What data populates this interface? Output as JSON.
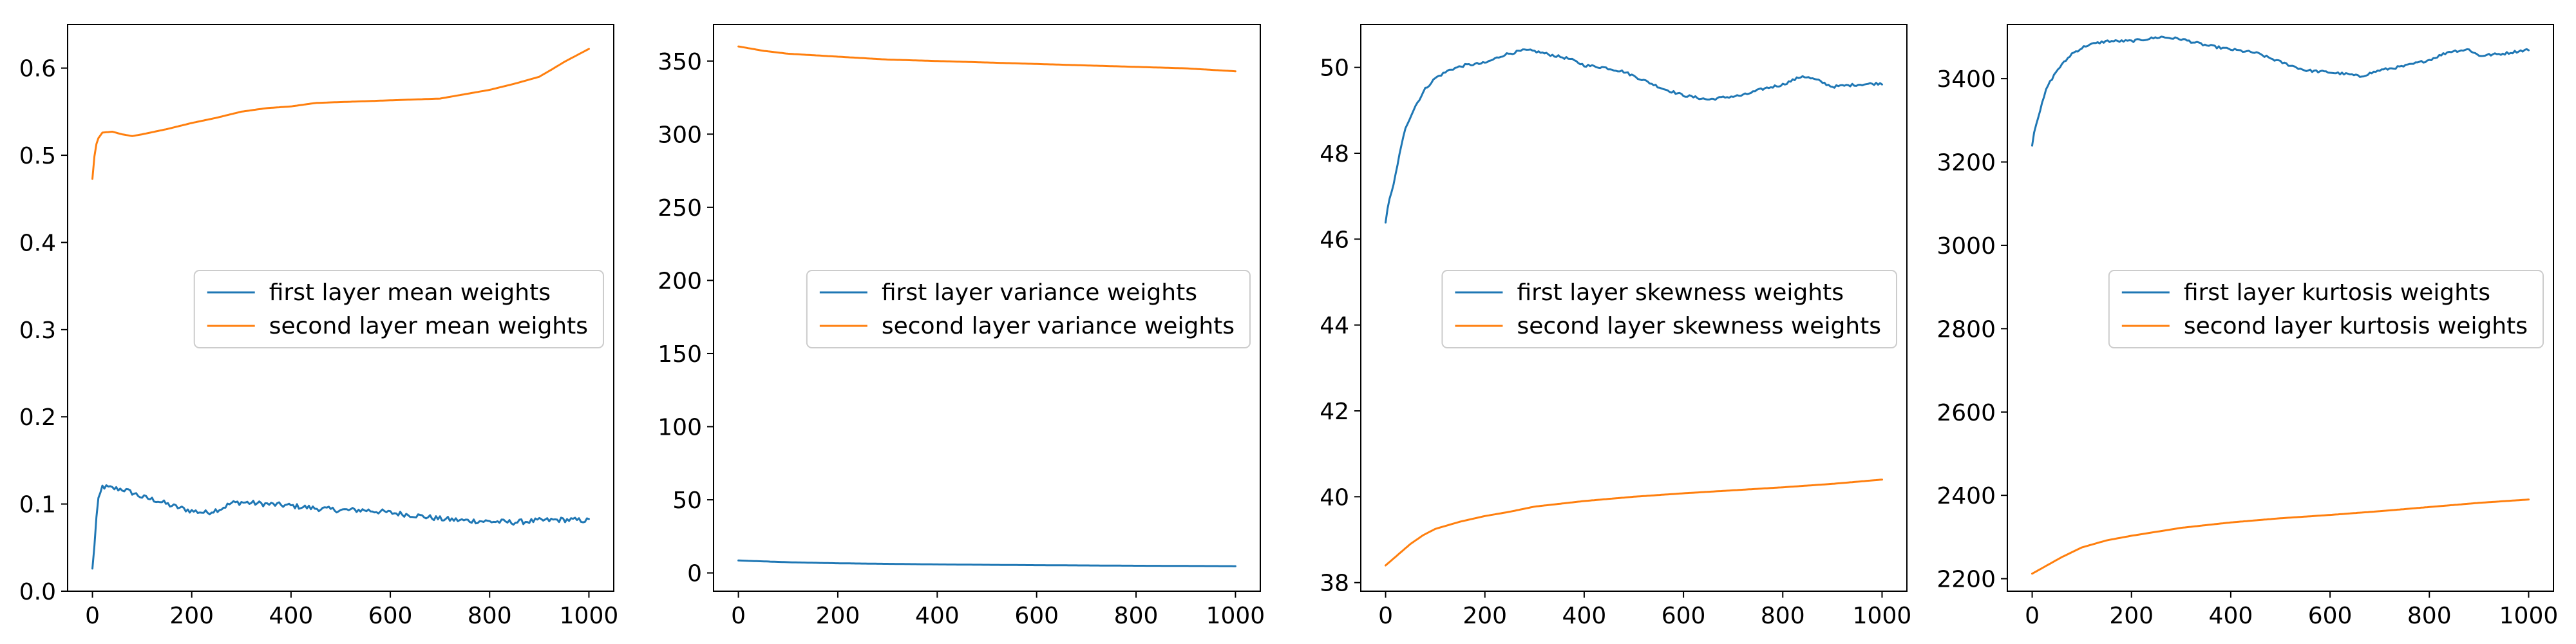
{
  "colors": {
    "first_layer": "#1f77b4",
    "second_layer": "#ff7f0e"
  },
  "chart_data": [
    {
      "type": "line",
      "xlim": [
        -50,
        1050
      ],
      "ylim": [
        0.0,
        0.65
      ],
      "xticks": [
        0,
        200,
        400,
        600,
        800,
        1000
      ],
      "yticks": [
        0.0,
        0.1,
        0.2,
        0.3,
        0.4,
        0.5,
        0.6
      ],
      "ytick_labels": [
        "0.0",
        "0.1",
        "0.2",
        "0.3",
        "0.4",
        "0.5",
        "0.6"
      ],
      "legend": {
        "placement": "center-right"
      },
      "series": [
        {
          "name": "first layer mean weights",
          "color": "#1f77b4",
          "noise": 0.003,
          "points": [
            [
              0,
              0.025
            ],
            [
              5,
              0.06
            ],
            [
              10,
              0.1
            ],
            [
              20,
              0.12
            ],
            [
              40,
              0.118
            ],
            [
              60,
              0.117
            ],
            [
              80,
              0.113
            ],
            [
              100,
              0.108
            ],
            [
              130,
              0.104
            ],
            [
              160,
              0.098
            ],
            [
              200,
              0.092
            ],
            [
              230,
              0.09
            ],
            [
              260,
              0.095
            ],
            [
              280,
              0.101
            ],
            [
              300,
              0.102
            ],
            [
              350,
              0.1
            ],
            [
              400,
              0.098
            ],
            [
              450,
              0.095
            ],
            [
              500,
              0.093
            ],
            [
              550,
              0.093
            ],
            [
              600,
              0.09
            ],
            [
              650,
              0.087
            ],
            [
              700,
              0.083
            ],
            [
              750,
              0.081
            ],
            [
              800,
              0.08
            ],
            [
              850,
              0.079
            ],
            [
              900,
              0.081
            ],
            [
              950,
              0.082
            ],
            [
              1000,
              0.081
            ]
          ]
        },
        {
          "name": "second layer mean weights",
          "color": "#ff7f0e",
          "noise": 0.0,
          "points": [
            [
              0,
              0.473
            ],
            [
              5,
              0.505
            ],
            [
              10,
              0.518
            ],
            [
              20,
              0.526
            ],
            [
              40,
              0.527
            ],
            [
              60,
              0.524
            ],
            [
              80,
              0.522
            ],
            [
              100,
              0.524
            ],
            [
              150,
              0.53
            ],
            [
              200,
              0.537
            ],
            [
              250,
              0.543
            ],
            [
              300,
              0.55
            ],
            [
              350,
              0.554
            ],
            [
              400,
              0.556
            ],
            [
              450,
              0.56
            ],
            [
              500,
              0.561
            ],
            [
              550,
              0.562
            ],
            [
              600,
              0.563
            ],
            [
              650,
              0.564
            ],
            [
              700,
              0.565
            ],
            [
              750,
              0.57
            ],
            [
              800,
              0.575
            ],
            [
              850,
              0.582
            ],
            [
              900,
              0.59
            ],
            [
              930,
              0.6
            ],
            [
              950,
              0.607
            ],
            [
              1000,
              0.622
            ]
          ]
        }
      ]
    },
    {
      "type": "line",
      "xlim": [
        -50,
        1050
      ],
      "ylim": [
        -12.5,
        375
      ],
      "xticks": [
        0,
        200,
        400,
        600,
        800,
        1000
      ],
      "yticks": [
        0,
        50,
        100,
        150,
        200,
        250,
        300,
        350
      ],
      "ytick_labels": [
        "0",
        "50",
        "100",
        "150",
        "200",
        "250",
        "300",
        "350"
      ],
      "legend": {
        "placement": "center-right"
      },
      "series": [
        {
          "name": "first layer variance weights",
          "color": "#1f77b4",
          "noise": 0.0,
          "points": [
            [
              0,
              8.5
            ],
            [
              100,
              7.3
            ],
            [
              200,
              6.6
            ],
            [
              400,
              5.8
            ],
            [
              600,
              5.3
            ],
            [
              800,
              4.9
            ],
            [
              1000,
              4.6
            ]
          ]
        },
        {
          "name": "second layer variance weights",
          "color": "#ff7f0e",
          "noise": 0.0,
          "points": [
            [
              0,
              360
            ],
            [
              50,
              357
            ],
            [
              100,
              355
            ],
            [
              200,
              353
            ],
            [
              300,
              351
            ],
            [
              400,
              350
            ],
            [
              500,
              349
            ],
            [
              600,
              348
            ],
            [
              700,
              347
            ],
            [
              800,
              346
            ],
            [
              900,
              345
            ],
            [
              1000,
              343
            ]
          ]
        }
      ]
    },
    {
      "type": "line",
      "xlim": [
        -50,
        1050
      ],
      "ylim": [
        37.8,
        51.0
      ],
      "xticks": [
        0,
        200,
        400,
        600,
        800,
        1000
      ],
      "yticks": [
        38,
        40,
        42,
        44,
        46,
        48,
        50
      ],
      "ytick_labels": [
        "38",
        "40",
        "42",
        "44",
        "46",
        "48",
        "50"
      ],
      "legend": {
        "placement": "center-right"
      },
      "series": [
        {
          "name": "first layer skewness weights",
          "color": "#1f77b4",
          "noise": 0.03,
          "points": [
            [
              0,
              46.4
            ],
            [
              5,
              46.8
            ],
            [
              15,
              47.2
            ],
            [
              25,
              47.8
            ],
            [
              40,
              48.6
            ],
            [
              60,
              49.1
            ],
            [
              80,
              49.5
            ],
            [
              100,
              49.75
            ],
            [
              130,
              49.95
            ],
            [
              160,
              50.05
            ],
            [
              200,
              50.1
            ],
            [
              240,
              50.3
            ],
            [
              280,
              50.4
            ],
            [
              300,
              50.38
            ],
            [
              330,
              50.3
            ],
            [
              370,
              50.2
            ],
            [
              400,
              50.05
            ],
            [
              440,
              50.0
            ],
            [
              480,
              49.9
            ],
            [
              520,
              49.7
            ],
            [
              560,
              49.5
            ],
            [
              600,
              49.35
            ],
            [
              650,
              49.25
            ],
            [
              680,
              49.3
            ],
            [
              720,
              49.35
            ],
            [
              760,
              49.5
            ],
            [
              800,
              49.6
            ],
            [
              840,
              49.8
            ],
            [
              870,
              49.7
            ],
            [
              900,
              49.55
            ],
            [
              950,
              49.6
            ],
            [
              1000,
              49.63
            ]
          ]
        },
        {
          "name": "second layer skewness weights",
          "color": "#ff7f0e",
          "noise": 0.0,
          "points": [
            [
              0,
              38.4
            ],
            [
              25,
              38.65
            ],
            [
              50,
              38.9
            ],
            [
              75,
              39.1
            ],
            [
              100,
              39.25
            ],
            [
              150,
              39.42
            ],
            [
              200,
              39.55
            ],
            [
              250,
              39.65
            ],
            [
              300,
              39.77
            ],
            [
              400,
              39.9
            ],
            [
              500,
              40.0
            ],
            [
              600,
              40.08
            ],
            [
              700,
              40.15
            ],
            [
              800,
              40.22
            ],
            [
              900,
              40.3
            ],
            [
              1000,
              40.4
            ]
          ]
        }
      ]
    },
    {
      "type": "line",
      "xlim": [
        -50,
        1050
      ],
      "ylim": [
        2170,
        3530
      ],
      "xticks": [
        0,
        200,
        400,
        600,
        800,
        1000
      ],
      "yticks": [
        2200,
        2400,
        2600,
        2800,
        3000,
        3200,
        3400
      ],
      "ytick_labels": [
        "2200",
        "2400",
        "2600",
        "2800",
        "3000",
        "3200",
        "3400"
      ],
      "legend": {
        "placement": "center-right"
      },
      "series": [
        {
          "name": "first layer kurtosis weights",
          "color": "#1f77b4",
          "noise": 3.0,
          "points": [
            [
              0,
              3240
            ],
            [
              5,
              3280
            ],
            [
              15,
              3320
            ],
            [
              30,
              3380
            ],
            [
              50,
              3420
            ],
            [
              80,
              3460
            ],
            [
              110,
              3480
            ],
            [
              150,
              3490
            ],
            [
              200,
              3490
            ],
            [
              230,
              3495
            ],
            [
              260,
              3500
            ],
            [
              300,
              3495
            ],
            [
              350,
              3480
            ],
            [
              400,
              3470
            ],
            [
              450,
              3462
            ],
            [
              500,
              3440
            ],
            [
              550,
              3420
            ],
            [
              600,
              3415
            ],
            [
              640,
              3410
            ],
            [
              660,
              3405
            ],
            [
              700,
              3420
            ],
            [
              750,
              3430
            ],
            [
              800,
              3445
            ],
            [
              840,
              3465
            ],
            [
              880,
              3470
            ],
            [
              900,
              3455
            ],
            [
              950,
              3460
            ],
            [
              1000,
              3470
            ]
          ]
        },
        {
          "name": "second layer kurtosis weights",
          "color": "#ff7f0e",
          "noise": 0.0,
          "points": [
            [
              0,
              2212
            ],
            [
              30,
              2232
            ],
            [
              60,
              2252
            ],
            [
              100,
              2275
            ],
            [
              150,
              2292
            ],
            [
              200,
              2303
            ],
            [
              300,
              2322
            ],
            [
              400,
              2335
            ],
            [
              500,
              2345
            ],
            [
              600,
              2353
            ],
            [
              700,
              2362
            ],
            [
              800,
              2372
            ],
            [
              900,
              2382
            ],
            [
              1000,
              2390
            ]
          ]
        }
      ]
    }
  ]
}
